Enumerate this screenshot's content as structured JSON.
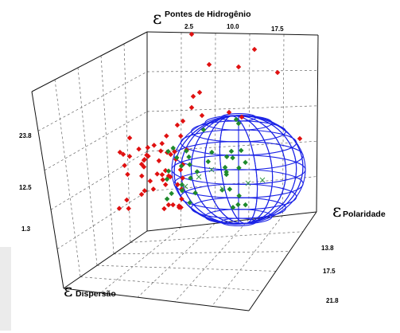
{
  "chart_data": {
    "type": "scatter",
    "subtype": "3d-scatter-with-ellipsoid",
    "axes": {
      "hydrogen": {
        "symbol": "ε",
        "label": "Pontes de Hidrogênio",
        "ticks": [
          "2.5",
          "10.0",
          "17.5"
        ]
      },
      "polarity": {
        "symbol": "ε",
        "label": "Polaridade",
        "ticks": [
          "13.8",
          "17.5",
          "21.8"
        ]
      },
      "dispersion": {
        "symbol": "ε",
        "label": "Dispersão",
        "ticks": [
          "23.8",
          "12.5",
          "1.3"
        ]
      }
    },
    "grid": true,
    "colors": {
      "good": "#1e8a2c",
      "poor": "#e01010",
      "sphere": "#1a22e6",
      "cross": "#3a9b4a"
    },
    "series": []
  }
}
